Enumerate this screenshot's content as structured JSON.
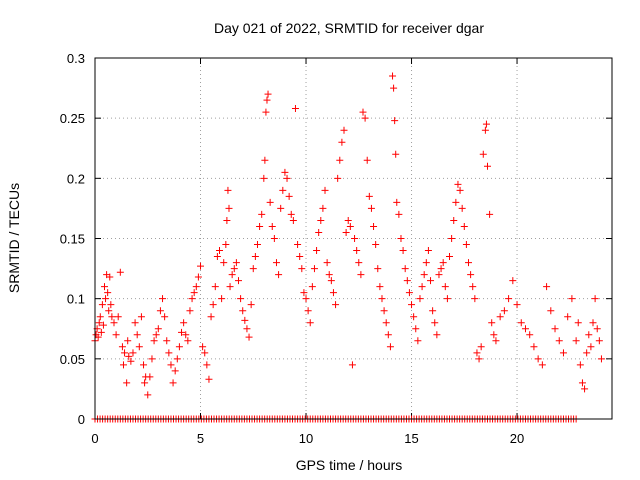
{
  "chart_data": {
    "type": "scatter",
    "title": "Day 021 of 2022, SRMTID for receiver dgar",
    "xlabel": "GPS time / hours",
    "ylabel": "SRMTID / TECUs",
    "xlim": [
      0,
      24.5
    ],
    "ylim": [
      0,
      0.3
    ],
    "xticks": [
      0,
      5,
      10,
      15,
      20
    ],
    "xtick_labels": [
      "0",
      "5",
      "10",
      "15",
      "20"
    ],
    "yticks": [
      0,
      0.05,
      0.1,
      0.15,
      0.2,
      0.25,
      0.3
    ],
    "ytick_labels": [
      "0",
      "0.05",
      "0.1",
      "0.15",
      "0.2",
      "0.25",
      "0.3"
    ],
    "grid": true,
    "marker": "+",
    "color": "#ff0000",
    "series": [
      {
        "name": "SRMTID",
        "points": [
          [
            0.0,
            0.065
          ],
          [
            0.05,
            0.07
          ],
          [
            0.1,
            0.075
          ],
          [
            0.15,
            0.068
          ],
          [
            0.2,
            0.08
          ],
          [
            0.25,
            0.085
          ],
          [
            0.3,
            0.072
          ],
          [
            0.35,
            0.095
          ],
          [
            0.4,
            0.078
          ],
          [
            0.45,
            0.11
          ],
          [
            0.5,
            0.1
          ],
          [
            0.55,
            0.12
          ],
          [
            0.6,
            0.105
          ],
          [
            0.65,
            0.09
          ],
          [
            0.7,
            0.118
          ],
          [
            0.75,
            0.095
          ],
          [
            0.8,
            0.085
          ],
          [
            0.9,
            0.08
          ],
          [
            1.0,
            0.07
          ],
          [
            1.1,
            0.085
          ],
          [
            1.2,
            0.122
          ],
          [
            1.3,
            0.06
          ],
          [
            1.35,
            0.045
          ],
          [
            1.4,
            0.055
          ],
          [
            1.5,
            0.03
          ],
          [
            1.55,
            0.065
          ],
          [
            1.6,
            0.052
          ],
          [
            1.7,
            0.048
          ],
          [
            1.8,
            0.055
          ],
          [
            1.9,
            0.08
          ],
          [
            2.0,
            0.07
          ],
          [
            2.1,
            0.06
          ],
          [
            2.2,
            0.085
          ],
          [
            2.3,
            0.045
          ],
          [
            2.35,
            0.03
          ],
          [
            2.4,
            0.035
          ],
          [
            2.5,
            0.02
          ],
          [
            2.6,
            0.035
          ],
          [
            2.7,
            0.05
          ],
          [
            2.8,
            0.065
          ],
          [
            2.9,
            0.07
          ],
          [
            3.0,
            0.075
          ],
          [
            3.1,
            0.09
          ],
          [
            3.2,
            0.1
          ],
          [
            3.3,
            0.085
          ],
          [
            3.4,
            0.065
          ],
          [
            3.5,
            0.055
          ],
          [
            3.6,
            0.045
          ],
          [
            3.7,
            0.03
          ],
          [
            3.8,
            0.04
          ],
          [
            3.9,
            0.05
          ],
          [
            4.0,
            0.06
          ],
          [
            4.1,
            0.072
          ],
          [
            4.2,
            0.08
          ],
          [
            4.3,
            0.07
          ],
          [
            4.4,
            0.065
          ],
          [
            4.5,
            0.09
          ],
          [
            4.6,
            0.1
          ],
          [
            4.7,
            0.105
          ],
          [
            4.8,
            0.11
          ],
          [
            4.9,
            0.118
          ],
          [
            5.0,
            0.127
          ],
          [
            5.1,
            0.06
          ],
          [
            5.2,
            0.055
          ],
          [
            5.3,
            0.045
          ],
          [
            5.4,
            0.033
          ],
          [
            5.5,
            0.085
          ],
          [
            5.6,
            0.095
          ],
          [
            5.7,
            0.11
          ],
          [
            5.8,
            0.135
          ],
          [
            5.9,
            0.14
          ],
          [
            6.0,
            0.1
          ],
          [
            6.1,
            0.13
          ],
          [
            6.2,
            0.145
          ],
          [
            6.25,
            0.165
          ],
          [
            6.3,
            0.19
          ],
          [
            6.35,
            0.175
          ],
          [
            6.4,
            0.11
          ],
          [
            6.5,
            0.12
          ],
          [
            6.6,
            0.125
          ],
          [
            6.7,
            0.13
          ],
          [
            6.8,
            0.115
          ],
          [
            6.9,
            0.1
          ],
          [
            7.0,
            0.09
          ],
          [
            7.1,
            0.082
          ],
          [
            7.2,
            0.075
          ],
          [
            7.3,
            0.068
          ],
          [
            7.4,
            0.095
          ],
          [
            7.5,
            0.125
          ],
          [
            7.6,
            0.135
          ],
          [
            7.7,
            0.145
          ],
          [
            7.8,
            0.16
          ],
          [
            7.9,
            0.17
          ],
          [
            8.0,
            0.2
          ],
          [
            8.05,
            0.215
          ],
          [
            8.1,
            0.255
          ],
          [
            8.15,
            0.265
          ],
          [
            8.2,
            0.27
          ],
          [
            8.3,
            0.18
          ],
          [
            8.4,
            0.16
          ],
          [
            8.5,
            0.15
          ],
          [
            8.6,
            0.13
          ],
          [
            8.7,
            0.12
          ],
          [
            8.8,
            0.175
          ],
          [
            8.9,
            0.19
          ],
          [
            9.0,
            0.205
          ],
          [
            9.1,
            0.2
          ],
          [
            9.2,
            0.185
          ],
          [
            9.3,
            0.17
          ],
          [
            9.4,
            0.165
          ],
          [
            9.5,
            0.258
          ],
          [
            9.6,
            0.145
          ],
          [
            9.7,
            0.135
          ],
          [
            9.8,
            0.125
          ],
          [
            9.9,
            0.105
          ],
          [
            10.0,
            0.1
          ],
          [
            10.1,
            0.09
          ],
          [
            10.2,
            0.08
          ],
          [
            10.3,
            0.11
          ],
          [
            10.4,
            0.125
          ],
          [
            10.5,
            0.14
          ],
          [
            10.6,
            0.155
          ],
          [
            10.7,
            0.165
          ],
          [
            10.8,
            0.175
          ],
          [
            10.9,
            0.19
          ],
          [
            11.0,
            0.13
          ],
          [
            11.1,
            0.12
          ],
          [
            11.2,
            0.115
          ],
          [
            11.3,
            0.105
          ],
          [
            11.4,
            0.095
          ],
          [
            11.5,
            0.2
          ],
          [
            11.6,
            0.215
          ],
          [
            11.7,
            0.23
          ],
          [
            11.8,
            0.24
          ],
          [
            11.9,
            0.155
          ],
          [
            12.0,
            0.165
          ],
          [
            12.1,
            0.16
          ],
          [
            12.2,
            0.045
          ],
          [
            12.3,
            0.15
          ],
          [
            12.4,
            0.14
          ],
          [
            12.5,
            0.13
          ],
          [
            12.6,
            0.12
          ],
          [
            12.7,
            0.255
          ],
          [
            12.8,
            0.25
          ],
          [
            12.9,
            0.215
          ],
          [
            13.0,
            0.185
          ],
          [
            13.1,
            0.175
          ],
          [
            13.2,
            0.16
          ],
          [
            13.3,
            0.145
          ],
          [
            13.4,
            0.125
          ],
          [
            13.5,
            0.11
          ],
          [
            13.6,
            0.1
          ],
          [
            13.7,
            0.09
          ],
          [
            13.8,
            0.08
          ],
          [
            13.9,
            0.07
          ],
          [
            14.0,
            0.06
          ],
          [
            14.1,
            0.285
          ],
          [
            14.15,
            0.275
          ],
          [
            14.2,
            0.248
          ],
          [
            14.25,
            0.22
          ],
          [
            14.3,
            0.18
          ],
          [
            14.4,
            0.17
          ],
          [
            14.5,
            0.15
          ],
          [
            14.6,
            0.14
          ],
          [
            14.7,
            0.125
          ],
          [
            14.8,
            0.115
          ],
          [
            14.9,
            0.105
          ],
          [
            15.0,
            0.095
          ],
          [
            15.1,
            0.085
          ],
          [
            15.2,
            0.075
          ],
          [
            15.3,
            0.065
          ],
          [
            15.4,
            0.1
          ],
          [
            15.5,
            0.11
          ],
          [
            15.6,
            0.12
          ],
          [
            15.7,
            0.13
          ],
          [
            15.8,
            0.14
          ],
          [
            15.9,
            0.115
          ],
          [
            16.0,
            0.09
          ],
          [
            16.1,
            0.08
          ],
          [
            16.2,
            0.07
          ],
          [
            16.3,
            0.12
          ],
          [
            16.4,
            0.125
          ],
          [
            16.5,
            0.13
          ],
          [
            16.6,
            0.11
          ],
          [
            16.7,
            0.1
          ],
          [
            16.8,
            0.135
          ],
          [
            16.9,
            0.15
          ],
          [
            17.0,
            0.165
          ],
          [
            17.1,
            0.18
          ],
          [
            17.2,
            0.195
          ],
          [
            17.3,
            0.19
          ],
          [
            17.4,
            0.175
          ],
          [
            17.5,
            0.16
          ],
          [
            17.6,
            0.145
          ],
          [
            17.7,
            0.13
          ],
          [
            17.8,
            0.12
          ],
          [
            17.9,
            0.11
          ],
          [
            18.0,
            0.1
          ],
          [
            18.1,
            0.055
          ],
          [
            18.2,
            0.05
          ],
          [
            18.3,
            0.06
          ],
          [
            18.4,
            0.22
          ],
          [
            18.5,
            0.24
          ],
          [
            18.55,
            0.245
          ],
          [
            18.6,
            0.21
          ],
          [
            18.7,
            0.17
          ],
          [
            18.8,
            0.08
          ],
          [
            18.9,
            0.07
          ],
          [
            19.0,
            0.065
          ],
          [
            19.2,
            0.085
          ],
          [
            19.4,
            0.09
          ],
          [
            19.6,
            0.1
          ],
          [
            19.8,
            0.115
          ],
          [
            20.0,
            0.095
          ],
          [
            20.2,
            0.08
          ],
          [
            20.4,
            0.075
          ],
          [
            20.6,
            0.07
          ],
          [
            20.8,
            0.06
          ],
          [
            21.0,
            0.05
          ],
          [
            21.2,
            0.045
          ],
          [
            21.4,
            0.11
          ],
          [
            21.6,
            0.09
          ],
          [
            21.8,
            0.075
          ],
          [
            22.0,
            0.065
          ],
          [
            22.2,
            0.055
          ],
          [
            22.4,
            0.085
          ],
          [
            22.6,
            0.1
          ],
          [
            22.8,
            0.065
          ],
          [
            22.9,
            0.08
          ],
          [
            23.0,
            0.045
          ],
          [
            23.1,
            0.03
          ],
          [
            23.2,
            0.025
          ],
          [
            23.3,
            0.055
          ],
          [
            23.4,
            0.07
          ],
          [
            23.5,
            0.06
          ],
          [
            23.6,
            0.08
          ],
          [
            23.7,
            0.1
          ],
          [
            23.8,
            0.075
          ],
          [
            23.9,
            0.065
          ],
          [
            24.0,
            0.05
          ]
        ]
      },
      {
        "name": "zero-line",
        "x_start": 0.0,
        "x_end": 22.9,
        "x_step": 0.12,
        "y": 0
      }
    ]
  }
}
